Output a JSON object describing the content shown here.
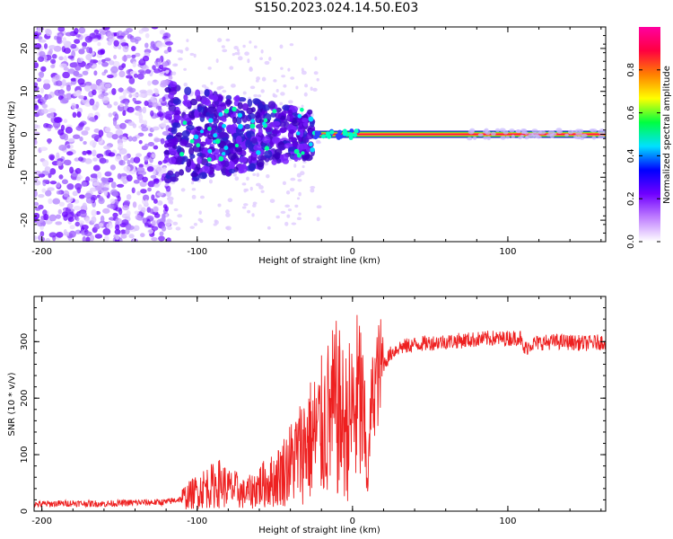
{
  "title": "S150.2023.024.14.50.E03",
  "chart_data": [
    {
      "type": "heatmap",
      "xlabel": "Height of straight line (km)",
      "ylabel": "Frequency (Hz)",
      "xlim": [
        -205,
        163
      ],
      "ylim": [
        -25,
        25
      ],
      "xticks": [
        -200,
        -100,
        0,
        100
      ],
      "yticks": [
        20,
        10,
        0,
        -10,
        -20
      ],
      "colorbar": {
        "label": "Normalized spectral amplitude",
        "range": [
          0,
          1
        ],
        "ticks": [
          "0.0",
          "0.2",
          "0.4",
          "0.6",
          "0.8"
        ],
        "colormap": [
          "#ffffff",
          "#c080ff",
          "#7000ff",
          "#0000ff",
          "#00e0ff",
          "#00ff40",
          "#ffff00",
          "#ff8000",
          "#ff0040",
          "#ff00a0"
        ]
      },
      "features": [
        {
          "name": "diffuse noise",
          "x_range": [
            -205,
            -120
          ],
          "freq_range": [
            -25,
            25
          ]
        },
        {
          "name": "scattered blobs",
          "x_range": [
            -120,
            -25
          ],
          "freq_range": [
            -10,
            10
          ]
        },
        {
          "name": "carrier line",
          "x_range": [
            -25,
            163
          ],
          "freq": 0,
          "amplitude": 1.0
        }
      ]
    },
    {
      "type": "line",
      "xlabel": "Height of straight line (km)",
      "ylabel": "SNR (10 * v/v)",
      "xlim": [
        -205,
        163
      ],
      "ylim": [
        0,
        380
      ],
      "xticks": [
        -200,
        -100,
        0,
        100
      ],
      "yticks": [
        0,
        100,
        200,
        300
      ],
      "color": "#ee2020",
      "series": [
        {
          "x": [
            -205,
            -180,
            -160,
            -140,
            -120,
            -110,
            -100,
            -95,
            -90,
            -85,
            -80,
            -75,
            -70,
            -65,
            -60,
            -55,
            -50,
            -45,
            -40,
            -35,
            -30,
            -25,
            -20,
            -15,
            -10,
            -5,
            0,
            5,
            8,
            10,
            12,
            15,
            20,
            25,
            30,
            35,
            40,
            50,
            60,
            70,
            80,
            90,
            95,
            100,
            105,
            108,
            110,
            115,
            120,
            130,
            140,
            150,
            163
          ],
          "y": [
            12,
            14,
            13,
            15,
            16,
            22,
            35,
            42,
            45,
            50,
            40,
            38,
            30,
            35,
            45,
            50,
            55,
            70,
            85,
            100,
            120,
            130,
            145,
            165,
            180,
            150,
            170,
            200,
            120,
            60,
            190,
            230,
            260,
            280,
            290,
            292,
            295,
            298,
            300,
            302,
            304,
            306,
            305,
            306,
            307,
            308,
            285,
            296,
            298,
            300,
            299,
            297,
            300
          ]
        }
      ]
    }
  ]
}
